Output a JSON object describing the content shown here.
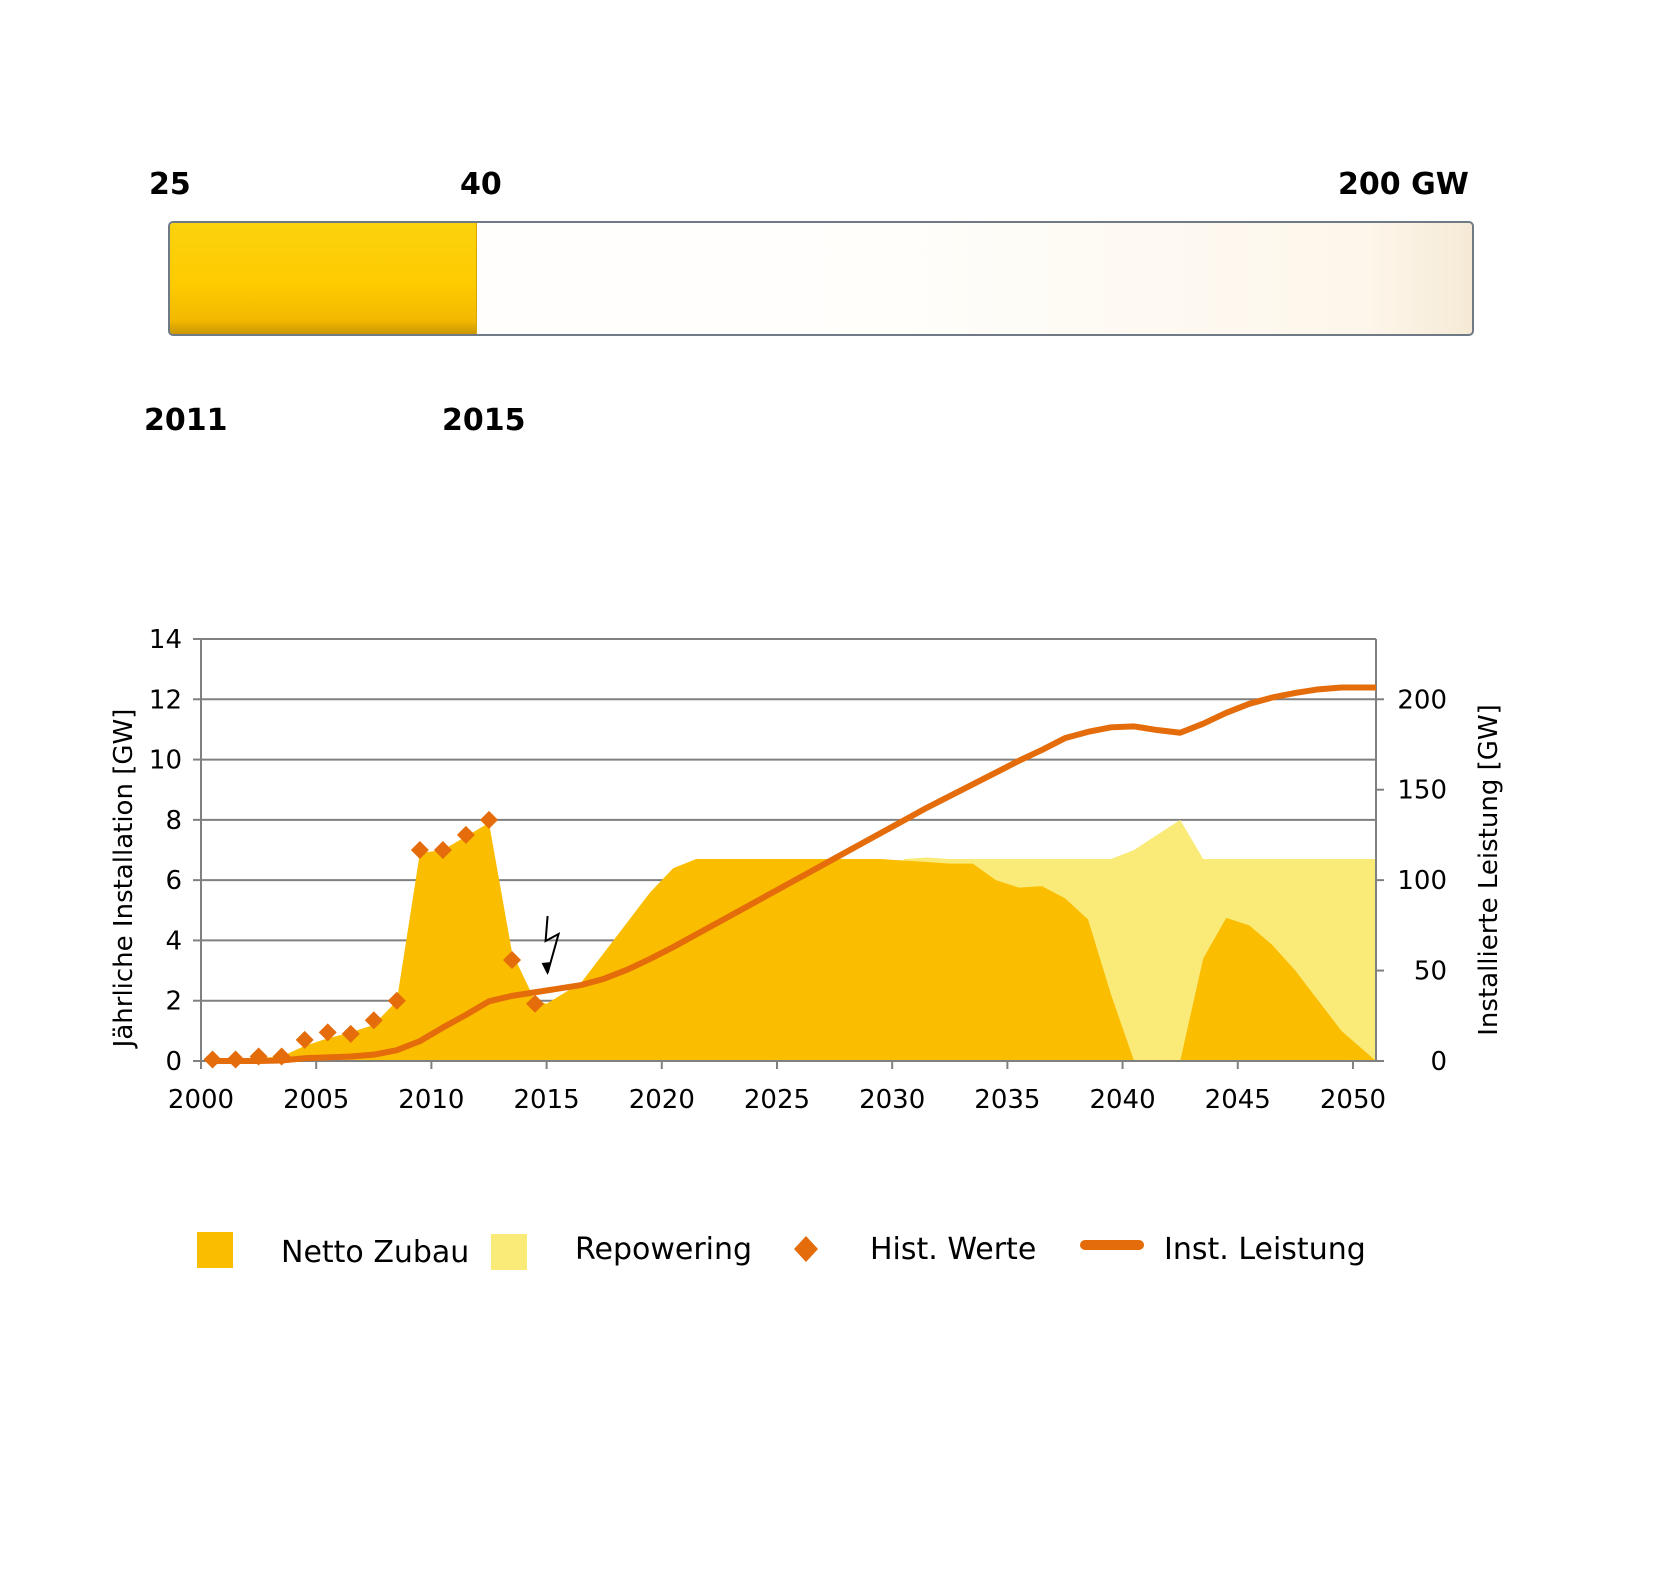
{
  "progress": {
    "value_start": "25",
    "value_current": "40",
    "value_target": "200 GW",
    "year_start": "2011",
    "year_current": "2015",
    "fill_fraction": 0.235
  },
  "colors": {
    "netto": "#fbbd00",
    "repowering": "#faeb78",
    "hist": "#e46c0a",
    "line": "#e46c0a",
    "grid": "#808080"
  },
  "chart_data": {
    "type": "area",
    "xlim": [
      2000,
      2051
    ],
    "ylim_left": [
      0,
      14
    ],
    "ylim_right": [
      0,
      233.33
    ],
    "x_ticks": [
      "2000",
      "2005",
      "2010",
      "2015",
      "2020",
      "2025",
      "2030",
      "2035",
      "2040",
      "2045",
      "2050"
    ],
    "y_ticks_left": [
      "0",
      "2",
      "4",
      "6",
      "8",
      "10",
      "12",
      "14"
    ],
    "y_ticks_right": [
      "0",
      "50",
      "100",
      "150",
      "200"
    ],
    "ylabel_left": "Jährliche Installation [GW]",
    "ylabel_right": "Installierte Leistung [GW]",
    "grid": true,
    "legend_position": "bottom",
    "legend": [
      "Netto Zubau",
      "Repowering",
      "Hist. Werte",
      "Inst. Leistung"
    ],
    "netto_zubau": {
      "x": [
        2000.5,
        2001.5,
        2002.5,
        2003.5,
        2004.5,
        2005.5,
        2006.5,
        2007.5,
        2008.5,
        2009.5,
        2010.5,
        2011.5,
        2012.5,
        2013.5,
        2014.5,
        2015,
        2016.5,
        2017.5,
        2018.5,
        2019.5,
        2020.5,
        2021.5,
        2022.5,
        2023.5,
        2024.5,
        2025.5,
        2026.5,
        2027.5,
        2028.5,
        2029.5,
        2030.5,
        2031.5,
        2032.5,
        2033.5,
        2034.5,
        2035.5,
        2036.5,
        2037.5,
        2038.5,
        2039.5,
        2040.5,
        2041.5,
        2042.5,
        2043.5,
        2044.5,
        2045.5,
        2046.5,
        2047.5,
        2048.5,
        2049.5,
        2051
      ],
      "values": [
        0.05,
        0.05,
        0.1,
        0.15,
        0.5,
        0.75,
        0.95,
        1.2,
        2.0,
        6.9,
        7.0,
        7.45,
        7.9,
        3.6,
        2.0,
        1.9,
        2.6,
        3.6,
        4.6,
        5.6,
        6.4,
        6.7,
        6.7,
        6.7,
        6.7,
        6.7,
        6.7,
        6.7,
        6.7,
        6.7,
        6.65,
        6.6,
        6.55,
        6.55,
        6.0,
        5.75,
        5.8,
        5.4,
        4.7,
        2.2,
        0,
        0,
        0,
        3.4,
        4.75,
        4.5,
        3.85,
        3.0,
        2.0,
        1.0,
        0
      ]
    },
    "repowering": {
      "x": [
        2030.5,
        2031.5,
        2032.5,
        2033.5,
        2034.5,
        2035.5,
        2036.5,
        2037.5,
        2038.5,
        2039.5,
        2040.5,
        2041.5,
        2042.5,
        2043.5,
        2044.5,
        2045.5,
        2046.5,
        2047.5,
        2048.5,
        2049.5,
        2051
      ],
      "values": [
        6.7,
        6.75,
        6.7,
        6.7,
        6.7,
        6.7,
        6.7,
        6.7,
        6.7,
        6.7,
        7.0,
        7.5,
        8.0,
        6.7,
        6.7,
        6.7,
        6.7,
        6.7,
        6.7,
        6.7,
        6.7
      ]
    },
    "hist_werte": {
      "x": [
        2000.5,
        2001.5,
        2002.5,
        2003.5,
        2004.5,
        2005.5,
        2006.5,
        2007.5,
        2008.5,
        2009.5,
        2010.5,
        2011.5,
        2012.5,
        2013.5,
        2014.5
      ],
      "values": [
        0.05,
        0.05,
        0.15,
        0.15,
        0.7,
        0.95,
        0.9,
        1.35,
        2.0,
        7.0,
        7.0,
        7.5,
        8.0,
        3.35,
        1.9
      ]
    },
    "inst_leistung": {
      "x": [
        2000.5,
        2002.5,
        2003.5,
        2004.5,
        2005.5,
        2006.5,
        2007.5,
        2008.5,
        2009.5,
        2010.5,
        2011.5,
        2012.5,
        2013.5,
        2014.5,
        2015.5,
        2016.5,
        2017.5,
        2018.5,
        2019.5,
        2020.5,
        2021.5,
        2022.5,
        2023.5,
        2024.5,
        2025.5,
        2026.5,
        2027.5,
        2028.5,
        2029.5,
        2030.5,
        2031.5,
        2032.5,
        2033.5,
        2034.5,
        2035.5,
        2036.5,
        2037.5,
        2038.5,
        2039.5,
        2040.5,
        2041.5,
        2042.5,
        2043.5,
        2044.5,
        2045.5,
        2046.5,
        2047.5,
        2048.5,
        2049.5,
        2050.5,
        2051
      ],
      "values": [
        0,
        0,
        0.3,
        1.5,
        2.0,
        2.5,
        3.5,
        6.0,
        11.0,
        18.5,
        25.5,
        33.0,
        36.0,
        38.0,
        40.0,
        42.0,
        45.5,
        50.5,
        56.5,
        63.0,
        70.0,
        77.0,
        84.0,
        91.0,
        98.0,
        105.0,
        112.0,
        119.0,
        126.0,
        133.0,
        140.0,
        146.5,
        153.0,
        159.5,
        166.0,
        172.0,
        178.5,
        182.0,
        184.5,
        185.0,
        183.0,
        181.5,
        186.5,
        192.5,
        197.5,
        201.0,
        203.5,
        205.5,
        206.5,
        206.5,
        206.5
      ]
    },
    "lightning_annotation_x": 2015
  }
}
